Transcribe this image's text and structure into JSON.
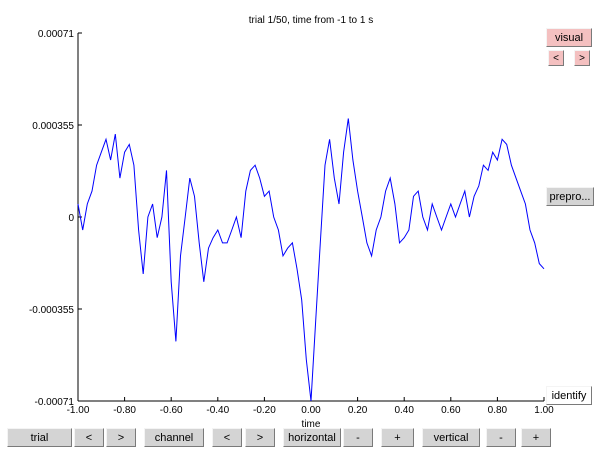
{
  "window": {
    "title": "trial 1/50, time from -1 to 1 s"
  },
  "side_panel": {
    "visual_label": "visual",
    "prev_label": "<",
    "next_label": ">",
    "prepro_label": "prepro...",
    "identify_label": "identify"
  },
  "toolbar": {
    "trial_label": "trial",
    "trial_prev": "<",
    "trial_next": ">",
    "channel_label": "channel",
    "channel_prev": "<",
    "channel_next": ">",
    "horizontal_label": "horizontal",
    "horizontal_minus": "-",
    "horizontal_plus": "+",
    "vertical_label": "vertical",
    "vertical_minus": "-",
    "vertical_plus": "+"
  },
  "colors": {
    "trace": "#0000ff",
    "visual_button": "#f4c0c0"
  },
  "chart_data": {
    "type": "line",
    "title": "trial 1/50, time from -1 to 1 s",
    "xlabel": "time",
    "ylabel": "",
    "xlim": [
      -1.0,
      1.0
    ],
    "ylim": [
      -0.00071,
      0.00071
    ],
    "x_ticks": [
      "-1.00",
      "-0.80",
      "-0.60",
      "-0.40",
      "-0.20",
      "0.00",
      "0.20",
      "0.40",
      "0.60",
      "0.80",
      "1.00"
    ],
    "y_ticks": [
      "0.00071",
      "0.000355",
      "0",
      "-0.000355",
      "-0.00071"
    ],
    "grid": false,
    "series": [
      {
        "color": "#0000ff",
        "x": [
          -1.0,
          -0.98,
          -0.96,
          -0.94,
          -0.92,
          -0.9,
          -0.88,
          -0.86,
          -0.84,
          -0.82,
          -0.8,
          -0.78,
          -0.76,
          -0.74,
          -0.72,
          -0.7,
          -0.68,
          -0.66,
          -0.64,
          -0.62,
          -0.6,
          -0.58,
          -0.56,
          -0.54,
          -0.52,
          -0.5,
          -0.48,
          -0.46,
          -0.44,
          -0.42,
          -0.4,
          -0.38,
          -0.36,
          -0.34,
          -0.32,
          -0.3,
          -0.28,
          -0.26,
          -0.24,
          -0.22,
          -0.2,
          -0.18,
          -0.16,
          -0.14,
          -0.12,
          -0.1,
          -0.08,
          -0.06,
          -0.04,
          -0.02,
          0.0,
          0.02,
          0.04,
          0.06,
          0.08,
          0.1,
          0.12,
          0.14,
          0.16,
          0.18,
          0.2,
          0.22,
          0.24,
          0.26,
          0.28,
          0.3,
          0.32,
          0.34,
          0.36,
          0.38,
          0.4,
          0.42,
          0.44,
          0.46,
          0.48,
          0.5,
          0.52,
          0.54,
          0.56,
          0.58,
          0.6,
          0.62,
          0.64,
          0.66,
          0.68,
          0.7,
          0.72,
          0.74,
          0.76,
          0.78,
          0.8,
          0.82,
          0.84,
          0.86,
          0.88,
          0.9,
          0.92,
          0.94,
          0.96,
          0.98,
          1.0
        ],
        "y": [
          5e-05,
          -5e-05,
          5e-05,
          0.0001,
          0.0002,
          0.00025,
          0.0003,
          0.00022,
          0.00032,
          0.00015,
          0.00025,
          0.00028,
          0.0002,
          -5e-05,
          -0.00022,
          0.0,
          5e-05,
          -8e-05,
          0.0,
          0.00018,
          -0.00025,
          -0.00048,
          -0.00015,
          0.0,
          0.00015,
          8e-05,
          -0.0001,
          -0.00025,
          -0.00012,
          -8e-05,
          -5e-05,
          -0.0001,
          -0.0001,
          -5e-05,
          0.0,
          -8e-05,
          0.0001,
          0.00018,
          0.0002,
          0.00015,
          8e-05,
          0.0001,
          0.0,
          -5e-05,
          -0.00015,
          -0.00012,
          -0.0001,
          -0.0002,
          -0.00032,
          -0.00055,
          -0.00071,
          -0.0004,
          -0.0001,
          0.0002,
          0.0003,
          0.00015,
          5e-05,
          0.00025,
          0.00038,
          0.00022,
          0.0001,
          0.0,
          -0.0001,
          -0.00015,
          -5e-05,
          0.0,
          0.0001,
          0.00015,
          5e-05,
          -0.0001,
          -8e-05,
          -5e-05,
          8e-05,
          0.0001,
          0.0,
          -5e-05,
          5e-05,
          0.0,
          -5e-05,
          0.0,
          5e-05,
          0.0,
          5e-05,
          0.0001,
          0.0,
          8e-05,
          0.00012,
          0.0002,
          0.00018,
          0.00025,
          0.00022,
          0.0003,
          0.00028,
          0.0002,
          0.00015,
          0.0001,
          5e-05,
          -5e-05,
          -0.0001,
          -0.00018,
          -0.0002
        ]
      }
    ]
  }
}
